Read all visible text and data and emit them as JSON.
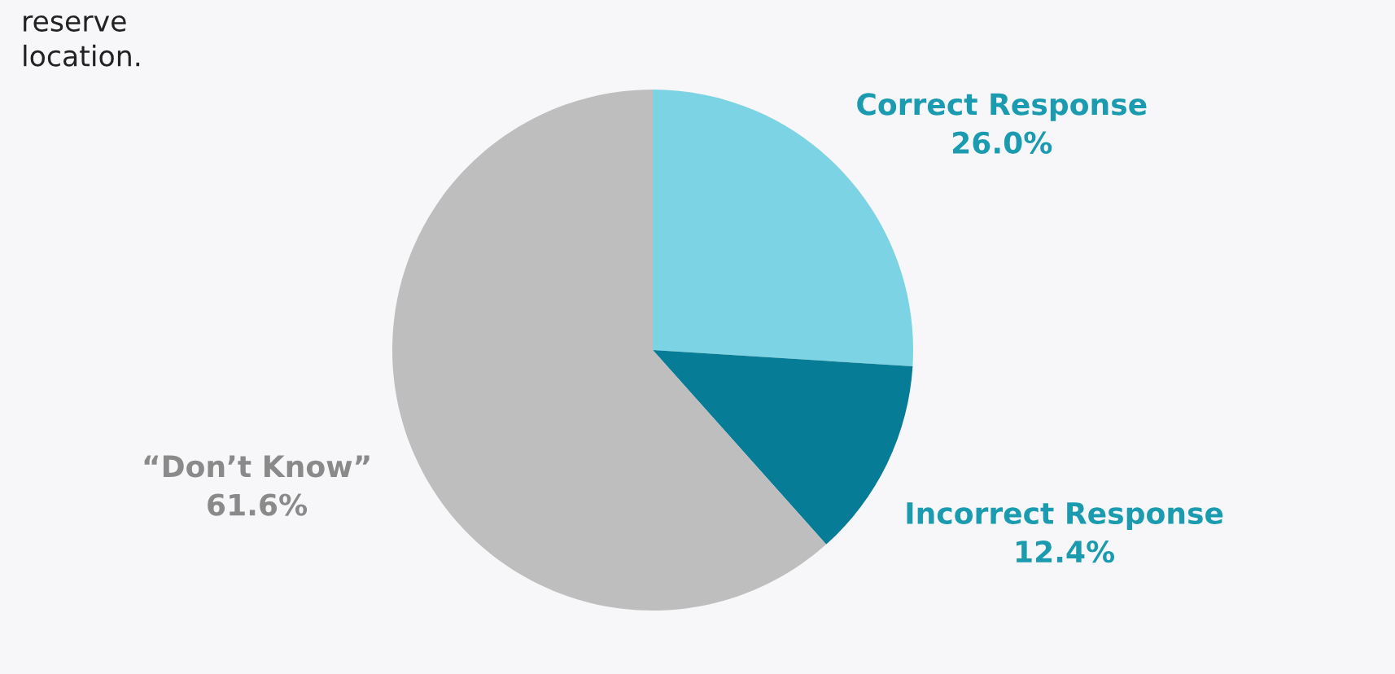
{
  "chart_data": {
    "type": "pie",
    "categories": [
      "Correct Response",
      "Incorrect Response",
      "“Don’t Know”"
    ],
    "values": [
      26.0,
      12.4,
      61.6
    ],
    "colors": [
      "#7bd3e3",
      "#067c96",
      "#bebebe"
    ],
    "value_labels": [
      "26.0%",
      "12.4%",
      "61.6%"
    ],
    "annotations": [
      "reserve\nlocation."
    ]
  }
}
